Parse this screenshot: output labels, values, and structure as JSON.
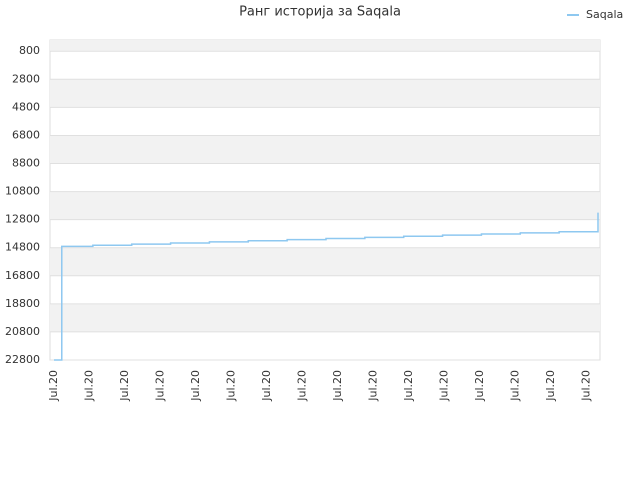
{
  "chart_data": {
    "type": "line",
    "title": "Ранг историја за Saqala",
    "x_tick_labels": [
      "Jul.20",
      "Jul.20",
      "Jul.20",
      "Jul.20",
      "Jul.20",
      "Jul.20",
      "Jul.20",
      "Jul.20",
      "Jul.20",
      "Jul.20",
      "Jul.20",
      "Jul.20",
      "Jul.20",
      "Jul.20",
      "Jul.20",
      "Jul.20"
    ],
    "series": [
      {
        "name": "Saqala",
        "color": "#8ec8f0",
        "values": [
          22800,
          14700,
          14700,
          14700,
          14700,
          14620,
          14620,
          14620,
          14620,
          14620,
          14540,
          14540,
          14540,
          14540,
          14540,
          14460,
          14460,
          14460,
          14460,
          14460,
          14380,
          14380,
          14380,
          14380,
          14380,
          14300,
          14300,
          14300,
          14300,
          14300,
          14220,
          14220,
          14220,
          14220,
          14220,
          14140,
          14140,
          14140,
          14140,
          14140,
          14060,
          14060,
          14060,
          14060,
          14060,
          13980,
          13980,
          13980,
          13980,
          13980,
          13900,
          13900,
          13900,
          13900,
          13900,
          13820,
          13820,
          13820,
          13820,
          13820,
          13740,
          13740,
          13740,
          13740,
          13740,
          13660,
          13660,
          13660,
          13660,
          13660,
          12300
        ]
      }
    ],
    "ylim": [
      22800,
      0
    ],
    "inverted": true,
    "yticks": [
      800,
      2800,
      4800,
      6800,
      8800,
      10800,
      12800,
      14800,
      16800,
      18800,
      20800,
      22800
    ],
    "grid": true,
    "legend": "top-right"
  }
}
